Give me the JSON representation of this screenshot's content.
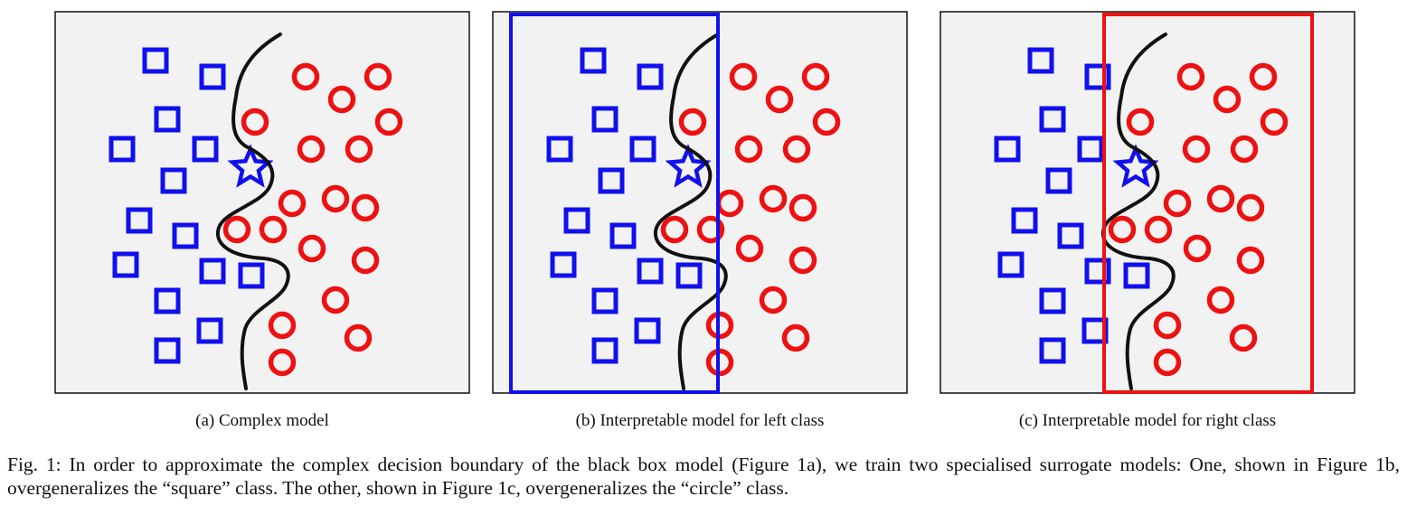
{
  "panels": [
    {
      "id": "a",
      "subcaption": "(a) Complex model",
      "overlay": null
    },
    {
      "id": "b",
      "subcaption": "(b) Interpretable model for left class",
      "overlay": "left"
    },
    {
      "id": "c",
      "subcaption": "(c) Interpretable model for right class",
      "overlay": "right"
    }
  ],
  "caption": "Fig. 1: In order to approximate the complex decision boundary of the black box model (Figure 1a), we train two specialised surrogate models: One, shown in Figure 1b, overgeneralizes the “square” class. The other, shown in Figure 1c, overgeneralizes the “circle” class.",
  "classes": {
    "square": {
      "marker": "square",
      "color": "#1010ee"
    },
    "circle": {
      "marker": "circle",
      "color": "#ee1111"
    },
    "query": {
      "marker": "star",
      "color": "#1010ee"
    }
  },
  "overlay_colors": {
    "left": "#1010ee",
    "right": "#ee1111"
  },
  "background_color": "#f2f2f2"
}
